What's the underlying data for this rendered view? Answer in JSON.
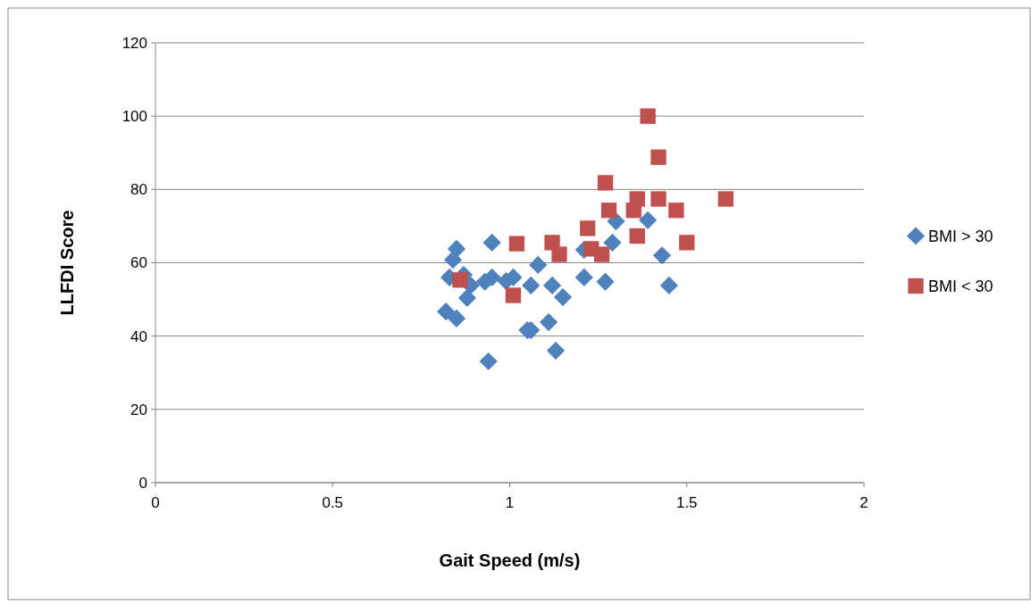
{
  "chart_data": {
    "type": "scatter",
    "xlabel": "Gait Speed (m/s)",
    "ylabel": "LLFDI Score",
    "xlim": [
      0,
      2
    ],
    "xticks": [
      0,
      0.5,
      1,
      1.5,
      2
    ],
    "ylim": [
      0,
      120
    ],
    "yticks": [
      0,
      20,
      40,
      60,
      80,
      100,
      120
    ],
    "grid": "y",
    "legend": "right",
    "series": [
      {
        "name": "BMI > 30",
        "color": "#4f81bd",
        "marker": "diamond",
        "x": [
          0.85,
          0.84,
          0.83,
          0.87,
          0.89,
          0.88,
          0.82,
          0.85,
          0.95,
          0.93,
          0.95,
          0.99,
          1.01,
          0.94,
          1.08,
          1.06,
          1.12,
          1.15,
          1.05,
          1.06,
          1.11,
          1.13,
          1.21,
          1.27,
          1.29,
          1.3,
          1.39,
          1.43,
          1.45,
          1.21
        ],
        "values": [
          63.8,
          60.8,
          56,
          56.7,
          53.8,
          50.4,
          46.7,
          44.8,
          65.5,
          54.8,
          56,
          55,
          56,
          33.1,
          59.4,
          53.8,
          53.8,
          50.6,
          41.6,
          41.6,
          43.8,
          36,
          56,
          54.8,
          65.5,
          71.3,
          71.6,
          62,
          53.8,
          63.5
        ]
      },
      {
        "name": "BMI < 30",
        "color": "#c0504d",
        "marker": "square",
        "x": [
          0.86,
          1.02,
          1.01,
          1.12,
          1.14,
          1.39,
          1.42,
          1.27,
          1.36,
          1.42,
          1.61,
          1.28,
          1.35,
          1.47,
          1.22,
          1.36,
          1.5,
          1.23,
          1.26
        ],
        "values": [
          55.3,
          65.2,
          51.1,
          65.5,
          62.3,
          100,
          88.8,
          81.8,
          77.4,
          77.4,
          77.4,
          74.3,
          74.3,
          74.3,
          69.4,
          67.3,
          65.5,
          63.8,
          62.3
        ]
      }
    ]
  }
}
